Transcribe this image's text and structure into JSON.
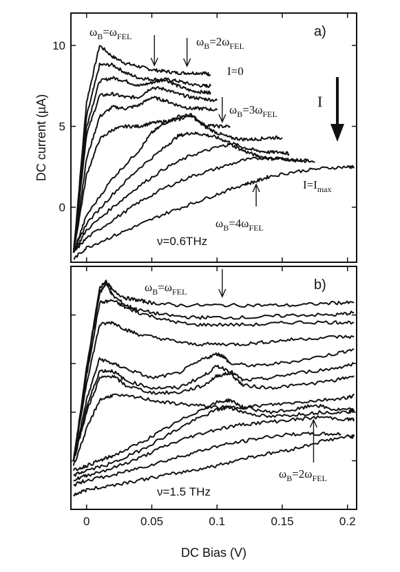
{
  "chart_data": [
    {
      "panel": "a",
      "type": "line",
      "panel_label": "a)",
      "ylabel": "DC current (µA)",
      "xlim": [
        -0.012,
        0.207
      ],
      "ylim": [
        -3.4,
        12
      ],
      "y_ticks": [
        0,
        5,
        10
      ],
      "x_ticks": [],
      "frequency_label": "ν=0.6THz",
      "intensity_label": "I",
      "annotations": [
        {
          "base": "ω",
          "sub": "B",
          "eq": "=ω",
          "sub2": "FEL",
          "x": 0.052
        },
        {
          "base": "ω",
          "sub": "B",
          "eq": "=2ω",
          "sub2": "FEL",
          "x": 0.077
        },
        {
          "base": "ω",
          "sub": "B",
          "eq": "=3ω",
          "sub2": "FEL",
          "x": 0.104
        },
        {
          "base": "ω",
          "sub": "B",
          "eq": "=4ω",
          "sub2": "FEL",
          "x": 0.13
        }
      ],
      "curve_labels": [
        {
          "base": "I=0",
          "sub": ""
        },
        {
          "base": "I=I",
          "sub": "max"
        }
      ],
      "series": [
        {
          "x": [
            -0.01,
            0.0,
            0.01,
            0.02,
            0.03,
            0.04,
            0.05,
            0.06,
            0.07,
            0.08,
            0.09,
            0.095
          ],
          "values": [
            -2.8,
            6.5,
            10.0,
            9.3,
            8.9,
            8.7,
            8.5,
            8.4,
            8.3,
            8.3,
            8.3,
            8.2
          ]
        },
        {
          "x": [
            -0.01,
            0.0,
            0.01,
            0.02,
            0.03,
            0.04,
            0.05,
            0.06,
            0.07,
            0.08,
            0.09,
            0.095
          ],
          "values": [
            -2.8,
            5.6,
            8.8,
            8.8,
            8.3,
            8.0,
            7.9,
            7.9,
            7.8,
            7.6,
            7.5,
            7.5
          ]
        },
        {
          "x": [
            -0.01,
            0.0,
            0.01,
            0.02,
            0.03,
            0.04,
            0.05,
            0.06,
            0.07,
            0.08,
            0.09,
            0.095
          ],
          "values": [
            -2.8,
            5.0,
            7.8,
            8.0,
            7.8,
            7.5,
            7.7,
            7.9,
            7.5,
            7.2,
            7.1,
            7.1
          ]
        },
        {
          "x": [
            -0.01,
            0.0,
            0.01,
            0.02,
            0.03,
            0.04,
            0.05,
            0.06,
            0.07,
            0.08,
            0.09,
            0.1
          ],
          "values": [
            -2.8,
            4.5,
            6.9,
            7.0,
            6.8,
            6.8,
            7.4,
            7.3,
            7.0,
            6.8,
            6.7,
            6.6
          ]
        },
        {
          "x": [
            -0.01,
            0.0,
            0.01,
            0.02,
            0.03,
            0.04,
            0.05,
            0.06,
            0.07,
            0.08,
            0.09,
            0.1
          ],
          "values": [
            -2.8,
            3.0,
            5.6,
            6.2,
            6.1,
            6.3,
            6.8,
            6.6,
            6.3,
            6.1,
            6.1,
            6.0
          ]
        },
        {
          "x": [
            -0.01,
            0.0,
            0.01,
            0.02,
            0.03,
            0.04,
            0.05,
            0.06,
            0.07,
            0.08,
            0.09,
            0.1,
            0.11
          ],
          "values": [
            -2.8,
            2.0,
            4.2,
            4.8,
            5.0,
            5.0,
            5.2,
            5.3,
            5.4,
            5.7,
            5.1,
            5.0,
            5.0
          ]
        },
        {
          "x": [
            -0.01,
            0.0,
            0.02,
            0.04,
            0.05,
            0.06,
            0.07,
            0.08,
            0.09,
            0.1,
            0.11,
            0.12,
            0.13,
            0.14,
            0.15
          ],
          "values": [
            -2.8,
            -0.5,
            1.8,
            3.5,
            4.6,
            5.2,
            5.6,
            5.7,
            5.0,
            4.6,
            4.3,
            4.2,
            4.2,
            4.3,
            4.3
          ]
        },
        {
          "x": [
            -0.01,
            0.0,
            0.02,
            0.04,
            0.06,
            0.07,
            0.08,
            0.09,
            0.1,
            0.11,
            0.12,
            0.13,
            0.14,
            0.15,
            0.155
          ],
          "values": [
            -2.8,
            -1.0,
            0.8,
            2.4,
            3.7,
            4.4,
            4.6,
            4.5,
            4.3,
            4.0,
            3.7,
            3.5,
            3.4,
            3.4,
            3.3
          ]
        },
        {
          "x": [
            -0.01,
            0.0,
            0.02,
            0.04,
            0.06,
            0.08,
            0.1,
            0.11,
            0.12,
            0.13,
            0.14,
            0.15,
            0.16,
            0.17
          ],
          "values": [
            -2.8,
            -1.4,
            0.0,
            1.3,
            2.4,
            3.2,
            3.7,
            3.9,
            3.5,
            3.2,
            3.0,
            3.0,
            2.9,
            2.9
          ]
        },
        {
          "x": [
            -0.01,
            0.0,
            0.02,
            0.04,
            0.06,
            0.08,
            0.1,
            0.12,
            0.14,
            0.16,
            0.175
          ],
          "values": [
            -2.8,
            -1.9,
            -0.8,
            0.3,
            1.2,
            1.9,
            2.4,
            2.9,
            3.1,
            2.9,
            2.8
          ]
        },
        {
          "x": [
            -0.01,
            0.0,
            0.02,
            0.04,
            0.06,
            0.08,
            0.1,
            0.12,
            0.13,
            0.14,
            0.16,
            0.18,
            0.2,
            0.205
          ],
          "values": [
            -3.2,
            -2.5,
            -1.8,
            -1.1,
            -0.4,
            0.2,
            0.8,
            1.4,
            1.6,
            1.9,
            2.2,
            2.4,
            2.5,
            2.5
          ]
        }
      ]
    },
    {
      "panel": "b",
      "type": "line",
      "panel_label": "b)",
      "xlabel": "DC Bias (V)",
      "xlim": [
        -0.012,
        0.207
      ],
      "ylim": [
        0,
        100
      ],
      "x_ticks": [
        0,
        0.05,
        0.1,
        0.15,
        0.2
      ],
      "y_ticks": [],
      "frequency_label": "ν=1.5 THz",
      "annotations": [
        {
          "base": "ω",
          "sub": "B",
          "eq": "=ω",
          "sub2": "FEL",
          "x": 0.104
        },
        {
          "base": "ω",
          "sub": "B",
          "eq": "=2ω",
          "sub2": "FEL",
          "x": 0.174
        }
      ],
      "series": [
        {
          "x": [
            -0.01,
            0.0,
            0.01,
            0.015,
            0.02,
            0.03,
            0.04,
            0.05,
            0.07,
            0.1,
            0.13,
            0.16,
            0.19,
            0.205
          ],
          "values": [
            20,
            58,
            91,
            94,
            90,
            87,
            86,
            85,
            84,
            84,
            84,
            84,
            85,
            85
          ]
        },
        {
          "x": [
            -0.01,
            0.0,
            0.01,
            0.015,
            0.02,
            0.03,
            0.04,
            0.06,
            0.08,
            0.1,
            0.13,
            0.16,
            0.19,
            0.205
          ],
          "values": [
            20,
            57,
            89,
            93,
            88,
            84,
            82,
            80,
            79,
            79,
            79,
            80,
            80,
            81
          ]
        },
        {
          "x": [
            -0.01,
            0.0,
            0.01,
            0.02,
            0.03,
            0.04,
            0.06,
            0.08,
            0.1,
            0.13,
            0.16,
            0.19,
            0.205
          ],
          "values": [
            20,
            55,
            85,
            86,
            83,
            81,
            78,
            76,
            76,
            76,
            77,
            77,
            77
          ]
        },
        {
          "x": [
            -0.01,
            0.0,
            0.01,
            0.02,
            0.03,
            0.04,
            0.06,
            0.08,
            0.1,
            0.12,
            0.14,
            0.16,
            0.19,
            0.205
          ],
          "values": [
            20,
            52,
            76,
            77,
            74,
            72,
            70,
            68,
            68,
            68,
            69,
            70,
            71,
            71
          ]
        },
        {
          "x": [
            -0.01,
            0.0,
            0.01,
            0.02,
            0.03,
            0.05,
            0.07,
            0.09,
            0.1,
            0.105,
            0.11,
            0.13,
            0.16,
            0.19,
            0.205
          ],
          "values": [
            20,
            45,
            62,
            60,
            58,
            54,
            56,
            62,
            64,
            63,
            60,
            59,
            61,
            64,
            66
          ]
        },
        {
          "x": [
            -0.01,
            0.0,
            0.01,
            0.02,
            0.03,
            0.05,
            0.07,
            0.09,
            0.1,
            0.11,
            0.12,
            0.14,
            0.16,
            0.19,
            0.205
          ],
          "values": [
            20,
            42,
            57,
            57,
            53,
            50,
            50,
            55,
            59,
            57,
            53,
            54,
            56,
            58,
            60
          ]
        },
        {
          "x": [
            -0.01,
            0.0,
            0.01,
            0.02,
            0.03,
            0.05,
            0.07,
            0.09,
            0.1,
            0.11,
            0.12,
            0.14,
            0.16,
            0.19,
            0.205
          ],
          "values": [
            20,
            40,
            54,
            55,
            51,
            48,
            48,
            51,
            55,
            56,
            51,
            50,
            51,
            53,
            55
          ]
        },
        {
          "x": [
            -0.01,
            0.0,
            0.01,
            0.02,
            0.04,
            0.06,
            0.08,
            0.1,
            0.12,
            0.14,
            0.16,
            0.18,
            0.2,
            0.205
          ],
          "values": [
            18,
            33,
            45,
            47,
            46,
            44,
            43,
            42,
            42,
            43,
            44,
            45,
            46,
            47
          ]
        },
        {
          "x": [
            -0.01,
            0.0,
            0.01,
            0.02,
            0.04,
            0.06,
            0.08,
            0.1,
            0.11,
            0.12,
            0.14,
            0.16,
            0.175,
            0.19,
            0.205
          ],
          "values": [
            16,
            18,
            20,
            22,
            27,
            33,
            39,
            44,
            45,
            42,
            40,
            41,
            43,
            41,
            41
          ]
        },
        {
          "x": [
            -0.01,
            0.0,
            0.02,
            0.04,
            0.06,
            0.08,
            0.1,
            0.11,
            0.12,
            0.14,
            0.16,
            0.18,
            0.2,
            0.205
          ],
          "values": [
            14,
            16,
            19,
            24,
            30,
            36,
            41,
            42,
            40,
            38,
            39,
            40,
            40,
            41
          ]
        },
        {
          "x": [
            -0.01,
            0.0,
            0.02,
            0.04,
            0.06,
            0.08,
            0.1,
            0.12,
            0.14,
            0.16,
            0.18,
            0.2,
            0.205
          ],
          "values": [
            12,
            14,
            17,
            21,
            26,
            30,
            33,
            35,
            36,
            37,
            38,
            37,
            37
          ]
        },
        {
          "x": [
            -0.01,
            0.0,
            0.02,
            0.04,
            0.06,
            0.08,
            0.1,
            0.12,
            0.14,
            0.16,
            0.18,
            0.195
          ],
          "values": [
            10,
            12,
            14,
            17,
            20,
            23,
            26,
            28,
            30,
            31,
            31,
            31
          ]
        },
        {
          "x": [
            -0.01,
            0.0,
            0.02,
            0.04,
            0.06,
            0.08,
            0.1,
            0.12,
            0.14,
            0.16,
            0.18,
            0.2,
            0.205
          ],
          "values": [
            6,
            8,
            10,
            12,
            14,
            16,
            18,
            21,
            23,
            25,
            28,
            30,
            30
          ]
        }
      ]
    }
  ]
}
